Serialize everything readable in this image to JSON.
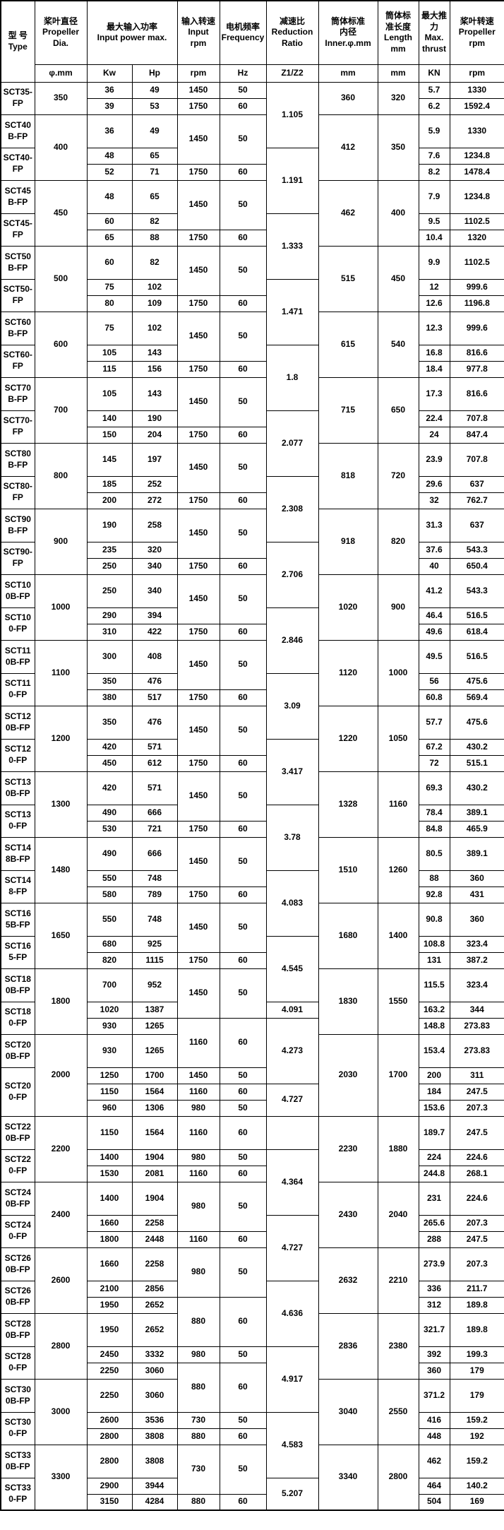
{
  "colors": {
    "background": "#ffffff",
    "grid": "#000000",
    "text": "#000000"
  },
  "table": {
    "header": [
      [
        [
          "型 号\nType",
          2,
          1
        ],
        [
          "桨叶直径\nPropeller\nDia.",
          1,
          1
        ],
        [
          "最大输入功率\nInput power max.",
          1,
          2
        ],
        [
          "输入转速\nInput rpm",
          1,
          1
        ],
        [
          "电机频率\nFrequency",
          1,
          1
        ],
        [
          "减速比\nReduction\nRatio",
          1,
          1
        ],
        [
          "筒体标准\n内径\nInner.φ.mm",
          1,
          1
        ],
        [
          "筒体标\n准长度\nLength\nmm",
          1,
          1
        ],
        [
          "最大推\n力\nMax.\nthrust",
          1,
          1
        ],
        [
          "桨叶转速\nPropeller\nrpm",
          1,
          1
        ]
      ],
      [
        "φ.mm",
        "Kw",
        "Hp",
        "rpm",
        "Hz",
        "Z1/Z2",
        "mm",
        "mm",
        "KN",
        "rpm"
      ]
    ],
    "rows": [
      [
        [
          "SCT35-FP",
          2
        ],
        [
          "350",
          2
        ],
        "36",
        "49",
        "1450",
        "50",
        [
          "1.105",
          3
        ],
        [
          "360",
          2
        ],
        [
          "320",
          2
        ],
        "5.7",
        "1330"
      ],
      [
        "39",
        "53",
        "1750",
        "60",
        "6.2",
        "1592.4"
      ],
      [
        "SCT40B-FP",
        [
          "400",
          3
        ],
        "36",
        "49",
        [
          "1450",
          2
        ],
        [
          "50",
          2
        ],
        [
          "412",
          3
        ],
        [
          "350",
          3
        ],
        "5.9",
        "1330"
      ],
      [
        [
          "SCT40-FP",
          2
        ],
        "48",
        "65",
        [
          "1.191",
          3
        ],
        "7.6",
        "1234.8"
      ],
      [
        "52",
        "71",
        "1750",
        "60",
        "8.2",
        "1478.4"
      ],
      [
        "SCT45B-FP",
        [
          "450",
          3
        ],
        "48",
        "65",
        [
          "1450",
          2
        ],
        [
          "50",
          2
        ],
        [
          "462",
          3
        ],
        [
          "400",
          3
        ],
        "7.9",
        "1234.8"
      ],
      [
        [
          "SCT45-FP",
          2
        ],
        "60",
        "82",
        [
          "1.333",
          3
        ],
        "9.5",
        "1102.5"
      ],
      [
        "65",
        "88",
        "1750",
        "60",
        "10.4",
        "1320"
      ],
      [
        "SCT50B-FP",
        [
          "500",
          3
        ],
        "60",
        "82",
        [
          "1450",
          2
        ],
        [
          "50",
          2
        ],
        [
          "515",
          3
        ],
        [
          "450",
          3
        ],
        "9.9",
        "1102.5"
      ],
      [
        [
          "SCT50-FP",
          2
        ],
        "75",
        "102",
        [
          "1.471",
          3
        ],
        "12",
        "999.6"
      ],
      [
        "80",
        "109",
        "1750",
        "60",
        "12.6",
        "1196.8"
      ],
      [
        "SCT60B-FP",
        [
          "600",
          3
        ],
        "75",
        "102",
        [
          "1450",
          2
        ],
        [
          "50",
          2
        ],
        [
          "615",
          3
        ],
        [
          "540",
          3
        ],
        "12.3",
        "999.6"
      ],
      [
        [
          "SCT60-FP",
          2
        ],
        "105",
        "143",
        [
          "1.8",
          3
        ],
        "16.8",
        "816.6"
      ],
      [
        "115",
        "156",
        "1750",
        "60",
        "18.4",
        "977.8"
      ],
      [
        "SCT70B-FP",
        [
          "700",
          3
        ],
        "105",
        "143",
        [
          "1450",
          2
        ],
        [
          "50",
          2
        ],
        [
          "715",
          3
        ],
        [
          "650",
          3
        ],
        "17.3",
        "816.6"
      ],
      [
        [
          "SCT70-FP",
          2
        ],
        "140",
        "190",
        [
          "2.077",
          3
        ],
        "22.4",
        "707.8"
      ],
      [
        "150",
        "204",
        "1750",
        "60",
        "24",
        "847.4"
      ],
      [
        "SCT80B-FP",
        [
          "800",
          3
        ],
        "145",
        "197",
        [
          "1450",
          2
        ],
        [
          "50",
          2
        ],
        [
          "818",
          3
        ],
        [
          "720",
          3
        ],
        "23.9",
        "707.8"
      ],
      [
        [
          "SCT80-FP",
          2
        ],
        "185",
        "252",
        [
          "2.308",
          3
        ],
        "29.6",
        "637"
      ],
      [
        "200",
        "272",
        "1750",
        "60",
        "32",
        "762.7"
      ],
      [
        "SCT90B-FP",
        [
          "900",
          3
        ],
        "190",
        "258",
        [
          "1450",
          2
        ],
        [
          "50",
          2
        ],
        [
          "918",
          3
        ],
        [
          "820",
          3
        ],
        "31.3",
        "637"
      ],
      [
        [
          "SCT90-FP",
          2
        ],
        "235",
        "320",
        [
          "2.706",
          3
        ],
        "37.6",
        "543.3"
      ],
      [
        "250",
        "340",
        "1750",
        "60",
        "40",
        "650.4"
      ],
      [
        "SCT100B-FP",
        [
          "1000",
          3
        ],
        "250",
        "340",
        [
          "1450",
          2
        ],
        [
          "50",
          2
        ],
        [
          "1020",
          3
        ],
        [
          "900",
          3
        ],
        "41.2",
        "543.3"
      ],
      [
        [
          "SCT100-FP",
          2
        ],
        "290",
        "394",
        [
          "2.846",
          3
        ],
        "46.4",
        "516.5"
      ],
      [
        "310",
        "422",
        "1750",
        "60",
        "49.6",
        "618.4"
      ],
      [
        "SCT110B-FP",
        [
          "1100",
          3
        ],
        "300",
        "408",
        [
          "1450",
          2
        ],
        [
          "50",
          2
        ],
        [
          "1120",
          3
        ],
        [
          "1000",
          3
        ],
        "49.5",
        "516.5"
      ],
      [
        [
          "SCT110-FP",
          2
        ],
        "350",
        "476",
        [
          "3.09",
          3
        ],
        "56",
        "475.6"
      ],
      [
        "380",
        "517",
        "1750",
        "60",
        "60.8",
        "569.4"
      ],
      [
        "SCT120B-FP",
        [
          "1200",
          3
        ],
        "350",
        "476",
        [
          "1450",
          2
        ],
        [
          "50",
          2
        ],
        [
          "1220",
          3
        ],
        [
          "1050",
          3
        ],
        "57.7",
        "475.6"
      ],
      [
        [
          "SCT120-FP",
          2
        ],
        "420",
        "571",
        [
          "3.417",
          3
        ],
        "67.2",
        "430.2"
      ],
      [
        "450",
        "612",
        "1750",
        "60",
        "72",
        "515.1"
      ],
      [
        "SCT130B-FP",
        [
          "1300",
          3
        ],
        "420",
        "571",
        [
          "1450",
          2
        ],
        [
          "50",
          2
        ],
        [
          "1328",
          3
        ],
        [
          "1160",
          3
        ],
        "69.3",
        "430.2"
      ],
      [
        [
          "SCT130-FP",
          2
        ],
        "490",
        "666",
        [
          "3.78",
          3
        ],
        "78.4",
        "389.1"
      ],
      [
        "530",
        "721",
        "1750",
        "60",
        "84.8",
        "465.9"
      ],
      [
        "SCT148B-FP",
        [
          "1480",
          3
        ],
        "490",
        "666",
        [
          "1450",
          2
        ],
        [
          "50",
          2
        ],
        [
          "1510",
          3
        ],
        [
          "1260",
          3
        ],
        "80.5",
        "389.1"
      ],
      [
        [
          "SCT148-FP",
          2
        ],
        "550",
        "748",
        [
          "4.083",
          3
        ],
        "88",
        "360"
      ],
      [
        "580",
        "789",
        "1750",
        "60",
        "92.8",
        "431"
      ],
      [
        "SCT165B-FP",
        [
          "1650",
          3
        ],
        "550",
        "748",
        [
          "1450",
          2
        ],
        [
          "50",
          2
        ],
        [
          "1680",
          3
        ],
        [
          "1400",
          3
        ],
        "90.8",
        "360"
      ],
      [
        [
          "SCT165-FP",
          2
        ],
        "680",
        "925",
        [
          "4.545",
          3
        ],
        "108.8",
        "323.4"
      ],
      [
        "820",
        "1115",
        "1750",
        "60",
        "131",
        "387.2"
      ],
      [
        "SCT180B-FP",
        [
          "1800",
          3
        ],
        "700",
        "952",
        [
          "1450",
          2
        ],
        [
          "50",
          2
        ],
        [
          "1830",
          3
        ],
        [
          "1550",
          3
        ],
        "115.5",
        "323.4"
      ],
      [
        [
          "SCT180-FP",
          2
        ],
        "1020",
        "1387",
        "4.091",
        "163.2",
        "344"
      ],
      [
        "930",
        "1265",
        [
          "1160",
          2
        ],
        [
          "60",
          2
        ],
        [
          "4.273",
          3
        ],
        "148.8",
        "273.83"
      ],
      [
        "SCT200B-FP",
        [
          "2000",
          4
        ],
        "930",
        "1265",
        [
          "2030",
          4
        ],
        [
          "1700",
          4
        ],
        "153.4",
        "273.83"
      ],
      [
        [
          "SCT200-FP",
          3
        ],
        "1250",
        "1700",
        "1450",
        "50",
        "200",
        "311"
      ],
      [
        "1150",
        "1564",
        "1160",
        "60",
        [
          "4.727",
          2
        ],
        "184",
        "247.5"
      ],
      [
        "960",
        "1306",
        "980",
        "50",
        "153.6",
        "207.3"
      ],
      [
        "SCT220B-FP",
        [
          "2200",
          3
        ],
        "1150",
        "1564",
        "1160",
        "60",
        "",
        [
          "2230",
          3
        ],
        [
          "1880",
          3
        ],
        "189.7",
        "247.5"
      ],
      [
        [
          "SCT220-FP",
          2
        ],
        "1400",
        "1904",
        "980",
        "50",
        [
          "4.364",
          3
        ],
        "224",
        "224.6"
      ],
      [
        "1530",
        "2081",
        "1160",
        "60",
        "244.8",
        "268.1"
      ],
      [
        "SCT240B-FP",
        [
          "2400",
          3
        ],
        "1400",
        "1904",
        [
          "980",
          2
        ],
        [
          "50",
          2
        ],
        [
          "2430",
          3
        ],
        [
          "2040",
          3
        ],
        "231",
        "224.6"
      ],
      [
        [
          "SCT240-FP",
          2
        ],
        "1660",
        "2258",
        [
          "4.727",
          3
        ],
        "265.6",
        "207.3"
      ],
      [
        "1800",
        "2448",
        "1160",
        "60",
        "288",
        "247.5"
      ],
      [
        "SCT260B-FP",
        [
          "2600",
          3
        ],
        "1660",
        "2258",
        [
          "980",
          2
        ],
        [
          "50",
          2
        ],
        [
          "2632",
          3
        ],
        [
          "2210",
          3
        ],
        "273.9",
        "207.3"
      ],
      [
        [
          "SCT260B-FP",
          2
        ],
        "2100",
        "2856",
        [
          "4.636",
          3
        ],
        "336",
        "211.7"
      ],
      [
        "1950",
        "2652",
        [
          "880",
          2
        ],
        [
          "60",
          2
        ],
        "312",
        "189.8"
      ],
      [
        "SCT280B-FP",
        [
          "2800",
          3
        ],
        "1950",
        "2652",
        [
          "2836",
          3
        ],
        [
          "2380",
          3
        ],
        "321.7",
        "189.8"
      ],
      [
        [
          "SCT280-FP",
          2
        ],
        "2450",
        "3332",
        "980",
        "50",
        [
          "4.917",
          3
        ],
        "392",
        "199.3"
      ],
      [
        "2250",
        "3060",
        [
          "880",
          2
        ],
        [
          "60",
          2
        ],
        "360",
        "179"
      ],
      [
        "SCT300B-FP",
        [
          "3000",
          3
        ],
        "2250",
        "3060",
        [
          "3040",
          3
        ],
        [
          "2550",
          3
        ],
        "371.2",
        "179"
      ],
      [
        [
          "SCT300-FP",
          2
        ],
        "2600",
        "3536",
        "730",
        "50",
        [
          "4.583",
          3
        ],
        "416",
        "159.2"
      ],
      [
        "2800",
        "3808",
        "880",
        "60",
        "448",
        "192"
      ],
      [
        "SCT330B-FP",
        [
          "3300",
          3
        ],
        "2800",
        "3808",
        [
          "730",
          2
        ],
        [
          "50",
          2
        ],
        [
          "3340",
          3
        ],
        [
          "2800",
          3
        ],
        "462",
        "159.2"
      ],
      [
        [
          "SCT330-FP",
          2
        ],
        "2900",
        "3944",
        [
          "5.207",
          2
        ],
        "464",
        "140.2"
      ],
      [
        "3150",
        "4284",
        "880",
        "60",
        "504",
        "169"
      ]
    ]
  }
}
